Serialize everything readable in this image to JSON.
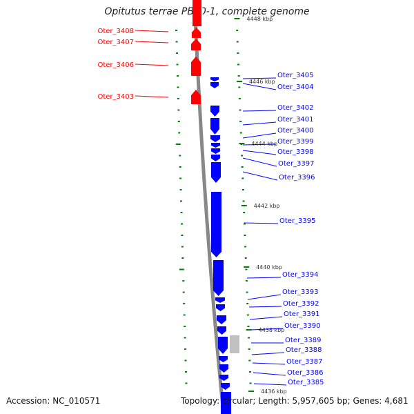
{
  "title": "Opitutus terrae PB90-1, complete genome",
  "accession": "Accession: NC_010571",
  "summary": "Topology: circular; Length: 5,957,605 bp; Genes: 4,681",
  "colors": {
    "forward": "#ff0000",
    "reverse": "#0000ff",
    "other": "#c0c0c0",
    "tick": "#008000",
    "backbone": "#888888"
  },
  "kbp_labels": [
    "4448 kbp",
    "4446 kbp",
    "4444 kbp",
    "4442 kbp",
    "4440 kbp",
    "4438 kbp",
    "4436 kbp"
  ],
  "forward_genes": [
    "Oter_3408",
    "Oter_3407",
    "Oter_3406",
    "Oter_3403"
  ],
  "reverse_genes": [
    "Oter_3405",
    "Oter_3404",
    "Oter_3402",
    "Oter_3401",
    "Oter_3400",
    "Oter_3399",
    "Oter_3398",
    "Oter_3397",
    "Oter_3396",
    "Oter_3395",
    "Oter_3394",
    "Oter_3393",
    "Oter_3392",
    "Oter_3391",
    "Oter_3390",
    "Oter_3389",
    "Oter_3388",
    "Oter_3387",
    "Oter_3386",
    "Oter_3385"
  ]
}
